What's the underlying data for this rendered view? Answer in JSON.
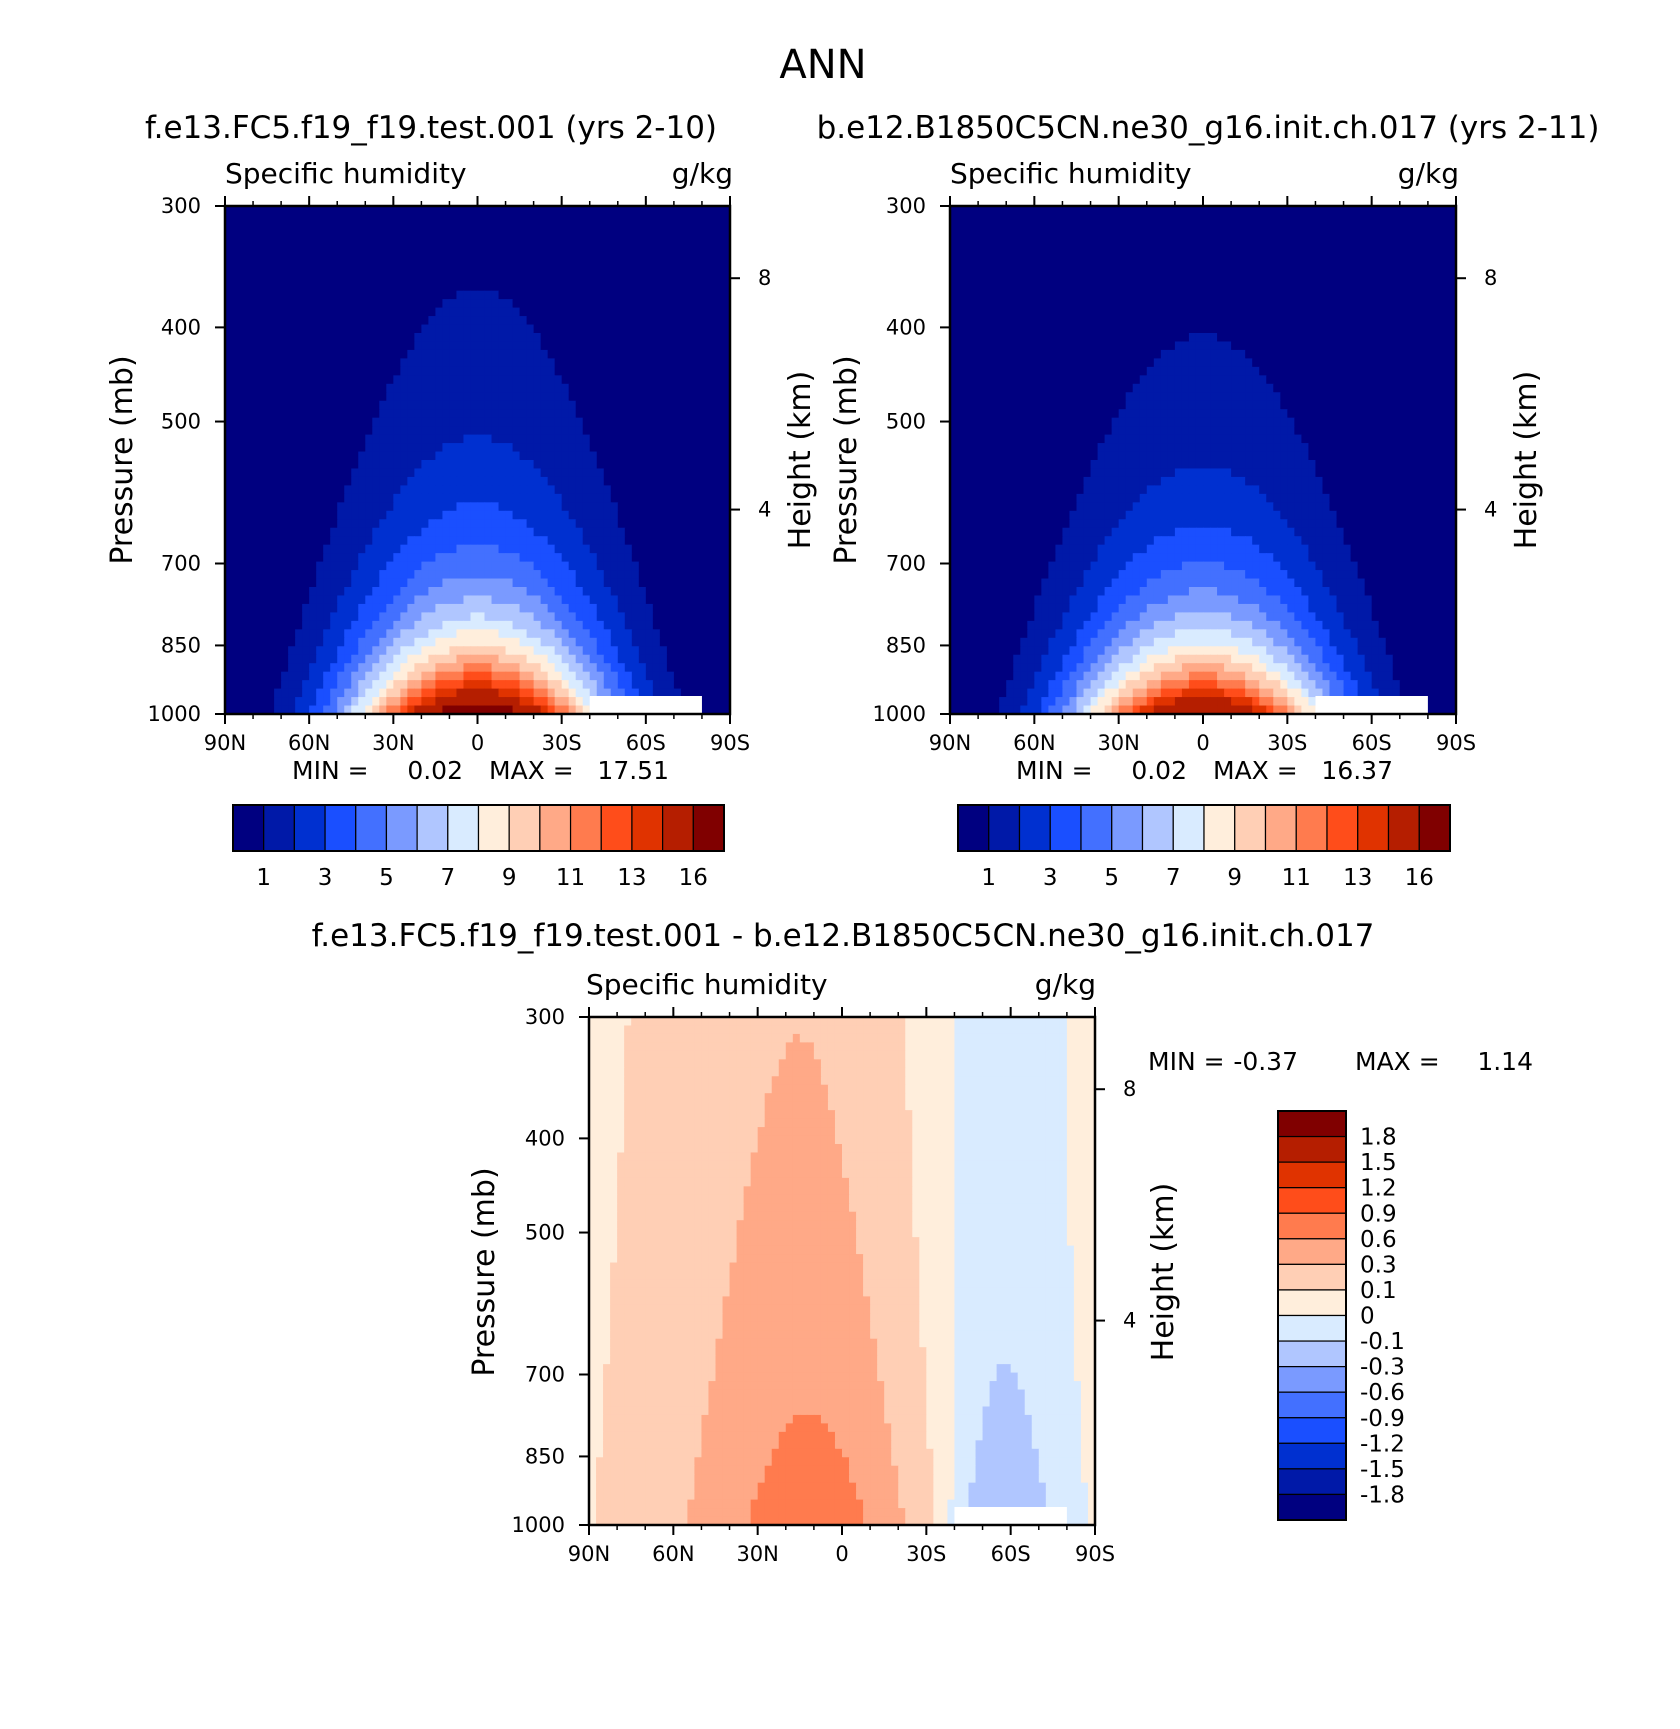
{
  "page": {
    "title": "ANN",
    "colors": {
      "seq": [
        "#000080",
        "#0019A8",
        "#0030D0",
        "#1A4FFF",
        "#4370FF",
        "#7A9AFF",
        "#B0C6FF",
        "#D9EBFF",
        "#FFEEDC",
        "#FFCFB5",
        "#FFA987",
        "#FF7B4E",
        "#FF4D1A",
        "#E03300",
        "#B51E00",
        "#800000"
      ],
      "div": [
        "#000080",
        "#0019A8",
        "#0030D0",
        "#1A4FFF",
        "#4370FF",
        "#7A9AFF",
        "#B0C6FF",
        "#D9EBFF",
        "#FFEEDC",
        "#FFCFB5",
        "#FFA987",
        "#FF7B4E",
        "#FF4D1A",
        "#E03300",
        "#B51E00",
        "#800000"
      ]
    }
  },
  "chart_data": [
    {
      "id": "p1",
      "type": "heatmap",
      "title": "f.e13.FC5.f19_f19.test.001 (yrs 2-10)",
      "left_title": "Specific humidity",
      "units": "g/kg",
      "ylabel": "Pressure (mb)",
      "ylabel_right": "Height (km)",
      "x_ticks": [
        "90N",
        "60N",
        "30N",
        "0",
        "30S",
        "60S",
        "90S"
      ],
      "y_ticks": [
        "300",
        "400",
        "500",
        "700",
        "850",
        "1000"
      ],
      "y_right_ticks": [
        "8",
        "4"
      ],
      "min_label": "MIN =",
      "min_value": "0.02",
      "max_label": "MAX =",
      "max_value": "17.51",
      "colorbar_labels": [
        "1",
        "3",
        "5",
        "7",
        "9",
        "11",
        "13",
        "16"
      ],
      "field": {
        "kind": "humidity",
        "peak": 17.51,
        "ridge_lat": 0,
        "scale_height_pa": 220
      }
    },
    {
      "id": "p2",
      "type": "heatmap",
      "title": "b.e12.B1850C5CN.ne30_g16.init.ch.017 (yrs 2-11)",
      "left_title": "Specific humidity",
      "units": "g/kg",
      "ylabel": "Pressure (mb)",
      "ylabel_right": "Height (km)",
      "x_ticks": [
        "90N",
        "60N",
        "30N",
        "0",
        "30S",
        "60S",
        "90S"
      ],
      "y_ticks": [
        "300",
        "400",
        "500",
        "700",
        "850",
        "1000"
      ],
      "y_right_ticks": [
        "8",
        "4"
      ],
      "min_label": "MIN =",
      "min_value": "0.02",
      "max_label": "MAX =",
      "max_value": "16.37",
      "colorbar_labels": [
        "1",
        "3",
        "5",
        "7",
        "9",
        "11",
        "13",
        "16"
      ],
      "field": {
        "kind": "humidity",
        "peak": 16.37,
        "ridge_lat": 0,
        "scale_height_pa": 210
      }
    },
    {
      "id": "p3",
      "type": "heatmap",
      "title": "f.e13.FC5.f19_f19.test.001 - b.e12.B1850C5CN.ne30_g16.init.ch.017",
      "left_title": "Specific humidity",
      "units": "g/kg",
      "ylabel": "Pressure (mb)",
      "ylabel_right": "Height (km)",
      "x_ticks": [
        "90N",
        "60N",
        "30N",
        "0",
        "30S",
        "60S",
        "90S"
      ],
      "y_ticks": [
        "300",
        "400",
        "500",
        "700",
        "850",
        "1000"
      ],
      "y_right_ticks": [
        "8",
        "4"
      ],
      "min_label": "MIN =",
      "min_value": "-0.37",
      "max_label": "MAX =",
      "max_value": "1.14",
      "colorbar_labels": [
        "1.8",
        "1.5",
        "1.2",
        "0.9",
        "0.6",
        "0.3",
        "0.1",
        "0",
        "-0.1",
        "-0.3",
        "-0.6",
        "-0.9",
        "-1.2",
        "-1.5",
        "-1.8"
      ],
      "field": {
        "kind": "difference",
        "peak": 1.14,
        "trough": -0.37
      }
    }
  ]
}
